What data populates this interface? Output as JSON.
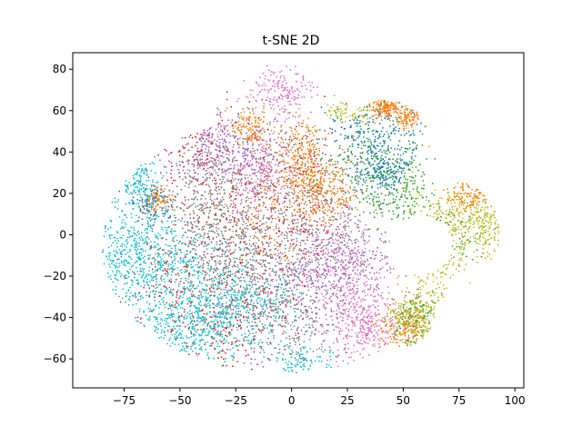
{
  "chart_data": {
    "type": "scatter",
    "title": "t-SNE 2D",
    "xlabel": "",
    "ylabel": "",
    "xlim": [
      -98,
      104
    ],
    "ylim": [
      -74,
      88
    ],
    "xticks": [
      -75,
      -50,
      -25,
      0,
      25,
      50,
      75,
      100
    ],
    "yticks": [
      -60,
      -40,
      -20,
      0,
      20,
      40,
      60,
      80
    ],
    "xtick_labels": [
      "−75",
      "−50",
      "−25",
      "0",
      "25",
      "50",
      "75",
      "100"
    ],
    "ytick_labels": [
      "−60",
      "−40",
      "−20",
      "0",
      "20",
      "40",
      "60",
      "80"
    ],
    "grid": false,
    "legend": "none",
    "series": [
      {
        "color": "#17becf",
        "values": [
          [
            -70,
            -10,
            14,
            12,
            0.75
          ],
          [
            -55,
            -28,
            18,
            20,
            0.8
          ],
          [
            -45,
            -45,
            12,
            12,
            0.6
          ],
          [
            -68,
            26,
            5,
            6,
            0.25
          ],
          [
            -30,
            -35,
            10,
            12,
            0.5
          ],
          [
            -10,
            -30,
            8,
            10,
            0.25
          ],
          [
            5,
            -60,
            7,
            4,
            0.15
          ]
        ]
      },
      {
        "color": "#7f7f7f",
        "values": [
          [
            -25,
            -10,
            14,
            20,
            0.7
          ],
          [
            -5,
            0,
            14,
            20,
            0.55
          ],
          [
            -35,
            20,
            10,
            15,
            0.4
          ],
          [
            20,
            10,
            10,
            15,
            0.3
          ],
          [
            0,
            -45,
            12,
            10,
            0.3
          ]
        ]
      },
      {
        "color": "#d62728",
        "values": [
          [
            -20,
            0,
            14,
            25,
            0.45
          ],
          [
            -30,
            -45,
            12,
            12,
            0.3
          ],
          [
            5,
            10,
            10,
            20,
            0.25
          ],
          [
            -45,
            40,
            8,
            10,
            0.2
          ],
          [
            -55,
            -20,
            10,
            15,
            0.2
          ]
        ]
      },
      {
        "color": "#9467bd",
        "values": [
          [
            -35,
            40,
            8,
            8,
            0.3
          ],
          [
            25,
            -15,
            10,
            12,
            0.35
          ],
          [
            0,
            -20,
            10,
            12,
            0.3
          ],
          [
            -15,
            35,
            8,
            10,
            0.25
          ]
        ]
      },
      {
        "color": "#e377c2",
        "values": [
          [
            -15,
            30,
            10,
            12,
            0.4
          ],
          [
            -5,
            70,
            7,
            6,
            0.35
          ],
          [
            25,
            -30,
            10,
            12,
            0.45
          ],
          [
            35,
            -45,
            8,
            8,
            0.4
          ],
          [
            20,
            -10,
            8,
            10,
            0.3
          ],
          [
            -40,
            55,
            6,
            5,
            0.2
          ]
        ]
      },
      {
        "color": "#ff7f0e",
        "values": [
          [
            5,
            35,
            6,
            10,
            0.45
          ],
          [
            15,
            20,
            6,
            8,
            0.35
          ],
          [
            42,
            62,
            3,
            3,
            0.3
          ],
          [
            52,
            57,
            3,
            3,
            0.2
          ],
          [
            -18,
            52,
            4,
            4,
            0.2
          ],
          [
            -60,
            17,
            3,
            3,
            0.15
          ],
          [
            50,
            -45,
            6,
            5,
            0.25
          ],
          [
            80,
            18,
            5,
            4,
            0.2
          ],
          [
            -10,
            10,
            8,
            15,
            0.2
          ]
        ]
      },
      {
        "color": "#1f77b4",
        "values": [
          [
            35,
            45,
            10,
            10,
            0.45
          ],
          [
            42,
            30,
            6,
            5,
            0.2
          ],
          [
            -62,
            15,
            5,
            5,
            0.2
          ]
        ]
      },
      {
        "color": "#2ca02c",
        "values": [
          [
            35,
            35,
            12,
            12,
            0.4
          ],
          [
            48,
            20,
            8,
            8,
            0.25
          ],
          [
            55,
            -40,
            6,
            6,
            0.2
          ],
          [
            72,
            0,
            8,
            8,
            0.15
          ]
        ]
      },
      {
        "color": "#bcbd22",
        "values": [
          [
            75,
            5,
            10,
            12,
            0.6
          ],
          [
            62,
            -20,
            5,
            15,
            0.3
          ],
          [
            55,
            -40,
            6,
            6,
            0.4
          ],
          [
            87,
            5,
            4,
            6,
            0.2
          ],
          [
            25,
            60,
            5,
            3,
            0.12
          ]
        ]
      },
      {
        "color": "#8c564b",
        "values": [
          [
            -40,
            0,
            10,
            15,
            0.15
          ],
          [
            0,
            40,
            8,
            10,
            0.1
          ]
        ]
      }
    ]
  }
}
